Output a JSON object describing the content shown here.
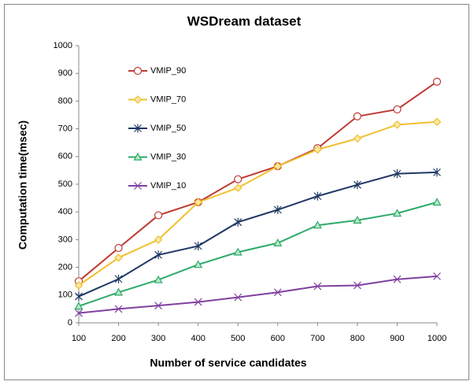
{
  "chart_data": {
    "type": "line",
    "title": "WSDream dataset",
    "x_label": "Number of service candidates",
    "y_label": "Computation time(msec)",
    "x": [
      100,
      200,
      300,
      400,
      500,
      600,
      700,
      800,
      900,
      1000
    ],
    "xlim": [
      100,
      1000
    ],
    "xticks": [
      100,
      200,
      300,
      400,
      500,
      600,
      700,
      800,
      900,
      1000
    ],
    "ylim": [
      0,
      1000
    ],
    "yticks": [
      0,
      100,
      200,
      300,
      400,
      500,
      600,
      700,
      800,
      900,
      1000
    ],
    "grid": false,
    "legend": "upper left",
    "series": [
      {
        "name": "VMIP_90",
        "color": "#be3a35",
        "marker": "circle",
        "values": [
          150,
          270,
          388,
          435,
          518,
          565,
          630,
          745,
          770,
          870
        ]
      },
      {
        "name": "VMIP_70",
        "color": "#f0c030",
        "marker": "diamond",
        "values": [
          135,
          235,
          300,
          435,
          487,
          565,
          625,
          665,
          715,
          725
        ]
      },
      {
        "name": "VMIP_50",
        "color": "#1f3864",
        "marker": "star",
        "values": [
          95,
          158,
          245,
          277,
          363,
          408,
          457,
          498,
          538,
          543
        ]
      },
      {
        "name": "VMIP_30",
        "color": "#2eaa6a",
        "marker": "triangle",
        "values": [
          60,
          110,
          155,
          210,
          255,
          288,
          352,
          370,
          395,
          435
        ]
      },
      {
        "name": "VMIP_10",
        "color": "#8040a0",
        "marker": "x",
        "values": [
          35,
          50,
          62,
          75,
          92,
          110,
          132,
          135,
          157,
          168
        ]
      }
    ]
  }
}
